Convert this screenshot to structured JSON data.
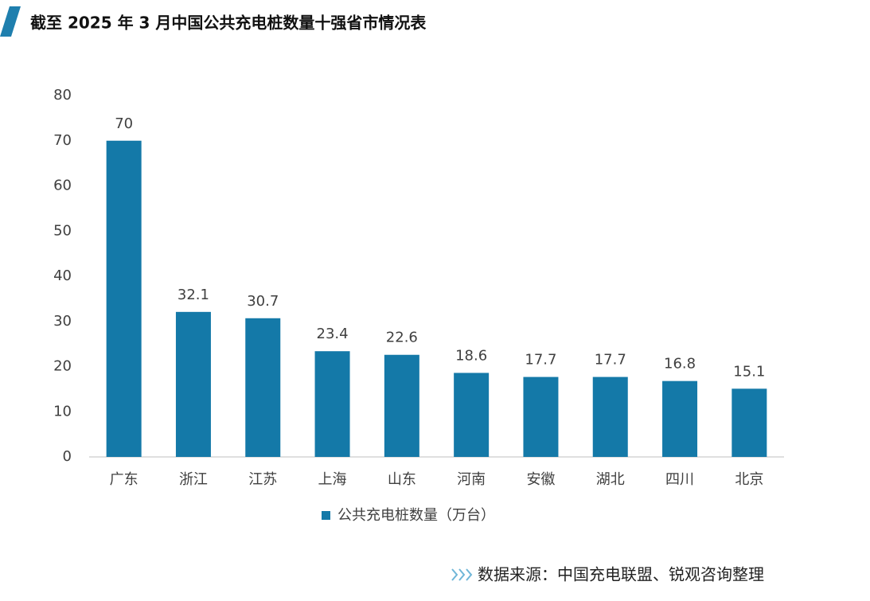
{
  "chart_data": {
    "type": "bar",
    "title": "截至 2025 年 3 月中国公共充电桩数量十强省市情况表",
    "categories": [
      "广东",
      "浙江",
      "江苏",
      "上海",
      "山东",
      "河南",
      "安徽",
      "湖北",
      "四川",
      "北京"
    ],
    "series": [
      {
        "name": "公共充电桩数量（万台）",
        "color": "#1479a8",
        "values": [
          70,
          32.1,
          30.7,
          23.4,
          22.6,
          18.6,
          17.7,
          17.7,
          16.8,
          15.1
        ]
      }
    ],
    "ylim": [
      0,
      80
    ],
    "yticks": [
      0,
      10,
      20,
      30,
      40,
      50,
      60,
      70,
      80
    ],
    "grid": false,
    "legend": "bottom",
    "source": "数据来源：中国充电联盟、锐观咨询整理"
  }
}
